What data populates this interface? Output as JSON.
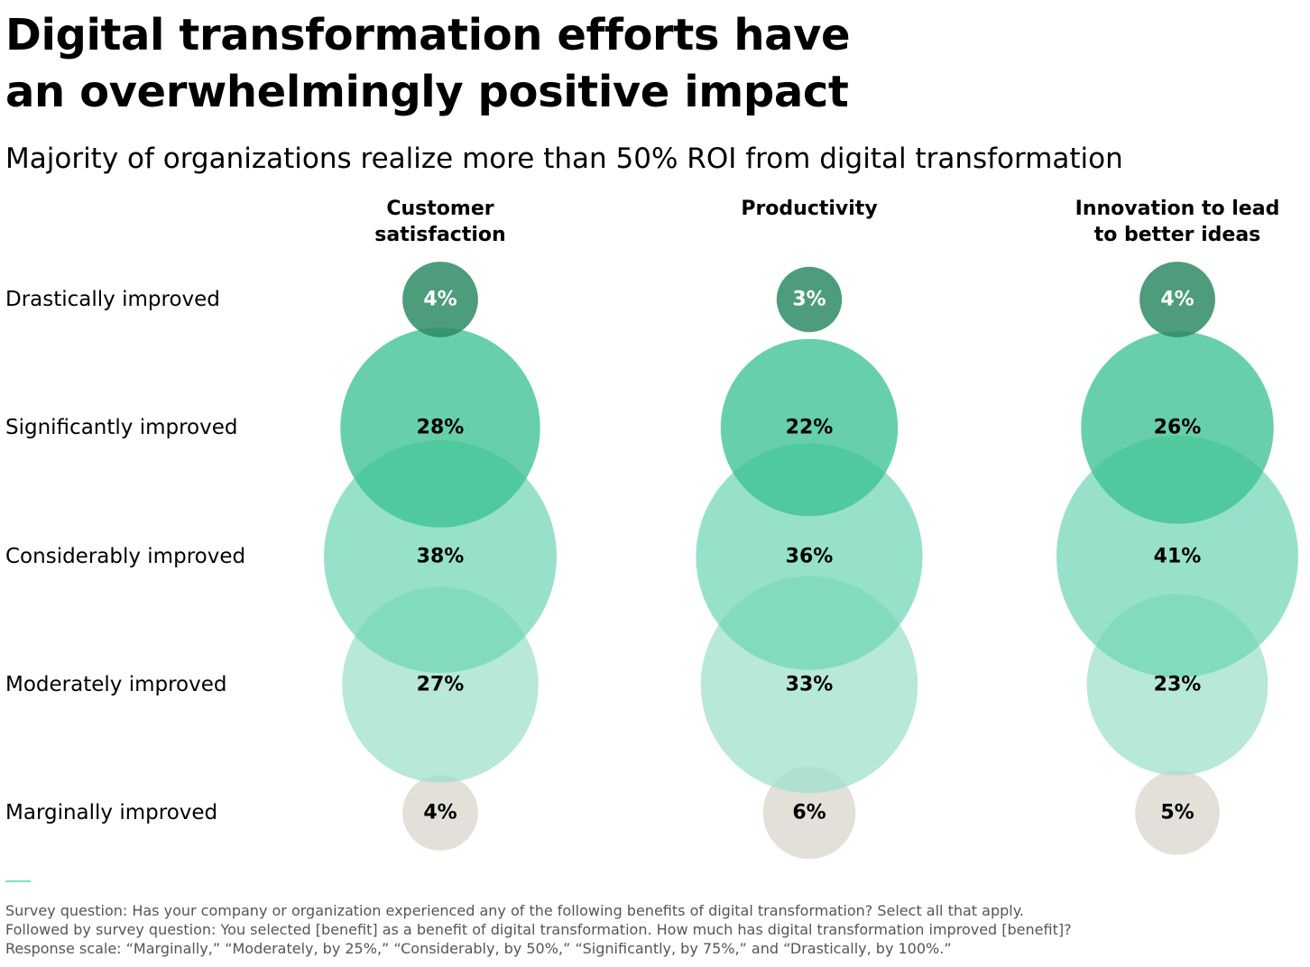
{
  "chart_data": {
    "type": "bubble",
    "title_lines": [
      "Digital transformation efforts have",
      "an overwhelmingly positive impact"
    ],
    "subtitle": "Majority of organizations realize more than 50% ROI from digital transformation",
    "rows": [
      "Drastically improved",
      "Significantly improved",
      "Considerably improved",
      "Moderately improved",
      "Marginally improved"
    ],
    "columns": [
      {
        "header_lines": [
          "Customer",
          "satisfaction"
        ],
        "values": [
          4,
          28,
          38,
          27,
          4
        ],
        "labels": [
          "4%",
          "28%",
          "38%",
          "27%",
          "4%"
        ]
      },
      {
        "header_lines": [
          "Productivity"
        ],
        "values": [
          3,
          22,
          36,
          33,
          6
        ],
        "labels": [
          "3%",
          "22%",
          "36%",
          "33%",
          "6%"
        ]
      },
      {
        "header_lines": [
          "Innovation to lead",
          "to better ideas"
        ],
        "values": [
          4,
          26,
          41,
          23,
          5
        ],
        "labels": [
          "4%",
          "26%",
          "41%",
          "23%",
          "5%"
        ]
      }
    ],
    "colors": {
      "row_fills": [
        "#2e8b64",
        "#3cc194",
        "#6fd6b6",
        "#9fe0cb",
        "#d6d3c9"
      ],
      "row_opacity": [
        0.85,
        0.78,
        0.72,
        0.75,
        0.7
      ],
      "label_text": [
        "#ffffff",
        "#000000",
        "#000000",
        "#000000",
        "#000000"
      ],
      "accent_rule": "#7fe0c4"
    }
  },
  "footnote_lines": [
    "Survey question: Has your company or organization experienced any of the following benefits of digital transformation? Select all that apply.",
    "Followed by survey question: You selected [benefit] as a benefit of digital transformation. How much has digital transformation improved [benefit]?",
    "Response scale: “Marginally,” “Moderately, by 25%,” “Considerably, by 50%,” “Significantly, by 75%,” and “Drastically, by 100%.”"
  ]
}
